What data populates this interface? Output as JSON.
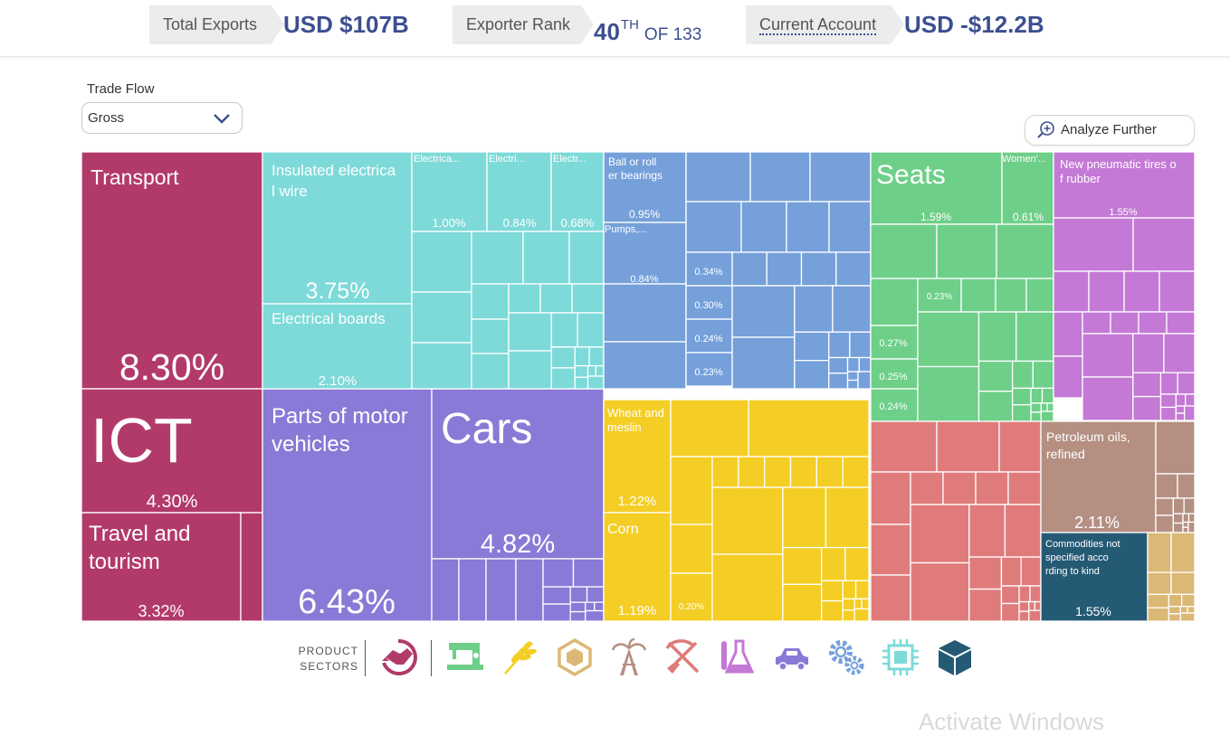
{
  "stats": {
    "total_exports_label": "Total Exports",
    "total_exports_value": "USD $107B",
    "rank_label": "Exporter Rank",
    "rank_value": "40",
    "rank_suffix": "TH",
    "rank_of": "OF 133",
    "current_account_label": "Current Account",
    "current_account_value": "USD -$12.2B"
  },
  "trade_flow": {
    "label": "Trade Flow",
    "selected": "Gross"
  },
  "analyze_button": "Analyze Further",
  "product_sectors": {
    "label_line1": "PRODUCT",
    "label_line2": "SECTORS",
    "icons": [
      "services-handshake-icon",
      "textiles-sewing-machine-icon",
      "agriculture-wheat-icon",
      "stone-gem-icon",
      "minerals-oil-derrick-icon",
      "metals-pick-shovel-icon",
      "chemicals-flask-icon",
      "vehicles-car-icon",
      "machinery-gears-icon",
      "electronics-chip-icon",
      "other-box-icon"
    ]
  },
  "watermark": "Activate Windows",
  "colors": {
    "services": "#b23a6b",
    "textiles": "#6dcf88",
    "agriculture": "#f4ce25",
    "stone": "#dcb876",
    "minerals": "#b48f82",
    "metals": "#e07b7b",
    "chemicals": "#c479d6",
    "vehicles": "#8a79d6",
    "machinery": "#75a0da",
    "electronics": "#7ddad8",
    "other": "#255a75",
    "accent": "#3c4f8f"
  },
  "chart_data": {
    "type": "treemap",
    "unit": "% of gross exports",
    "labeled_items": [
      {
        "label": "Transport",
        "value": 8.3,
        "value_label": "8.30%",
        "sector": "services"
      },
      {
        "label": "ICT",
        "value": 4.3,
        "value_label": "4.30%",
        "sector": "services"
      },
      {
        "label": "Travel and tourism",
        "value": 3.32,
        "value_label": "3.32%",
        "sector": "services"
      },
      {
        "label": "Insulated electrical wire",
        "value": 3.75,
        "value_label": "3.75%",
        "sector": "electronics"
      },
      {
        "label": "Electrical boards",
        "value": 2.1,
        "value_label": "2.10%",
        "sector": "electronics"
      },
      {
        "label": "Electrica...",
        "value": 1.0,
        "value_label": "1.00%",
        "sector": "electronics"
      },
      {
        "label": "Electri...",
        "value": 0.84,
        "value_label": "0.84%",
        "sector": "electronics"
      },
      {
        "label": "Electr...",
        "value": 0.68,
        "value_label": "0.68%",
        "sector": "electronics"
      },
      {
        "label": "Parts of motor vehicles",
        "value": 6.43,
        "value_label": "6.43%",
        "sector": "vehicles"
      },
      {
        "label": "Cars",
        "value": 4.82,
        "value_label": "4.82%",
        "sector": "vehicles"
      },
      {
        "label": "Ball or roller bearings",
        "value": 0.95,
        "value_label": "0.95%",
        "sector": "machinery"
      },
      {
        "label": "Pumps,...",
        "value": 0.84,
        "value_label": "0.84%",
        "sector": "machinery"
      },
      {
        "label": "",
        "value": 0.34,
        "value_label": "0.34%",
        "sector": "machinery"
      },
      {
        "label": "",
        "value": 0.3,
        "value_label": "0.30%",
        "sector": "machinery"
      },
      {
        "label": "",
        "value": 0.24,
        "value_label": "0.24%",
        "sector": "machinery"
      },
      {
        "label": "",
        "value": 0.23,
        "value_label": "0.23%",
        "sector": "machinery"
      },
      {
        "label": "Wheat and meslin",
        "value": 1.22,
        "value_label": "1.22%",
        "sector": "agriculture"
      },
      {
        "label": "Corn",
        "value": 1.19,
        "value_label": "1.19%",
        "sector": "agriculture"
      },
      {
        "label": "",
        "value": 0.2,
        "value_label": "0.20%",
        "sector": "agriculture"
      },
      {
        "label": "Seats",
        "value": 1.59,
        "value_label": "1.59%",
        "sector": "textiles"
      },
      {
        "label": "Women'...",
        "value": 0.61,
        "value_label": "0.61%",
        "sector": "textiles"
      },
      {
        "label": "",
        "value": 0.23,
        "value_label": "0.23%",
        "sector": "textiles"
      },
      {
        "label": "",
        "value": 0.27,
        "value_label": "0.27%",
        "sector": "textiles"
      },
      {
        "label": "",
        "value": 0.25,
        "value_label": "0.25%",
        "sector": "textiles"
      },
      {
        "label": "",
        "value": 0.24,
        "value_label": "0.24%",
        "sector": "textiles"
      },
      {
        "label": "New pneumatic tires of rubber",
        "value": 1.55,
        "value_label": "1.55%",
        "sector": "chemicals"
      },
      {
        "label": "Petroleum oils, refined",
        "value": 2.11,
        "value_label": "2.11%",
        "sector": "minerals"
      },
      {
        "label": "Commodities not specified according to kind",
        "value": 1.55,
        "value_label": "1.55%",
        "sector": "other"
      }
    ]
  }
}
